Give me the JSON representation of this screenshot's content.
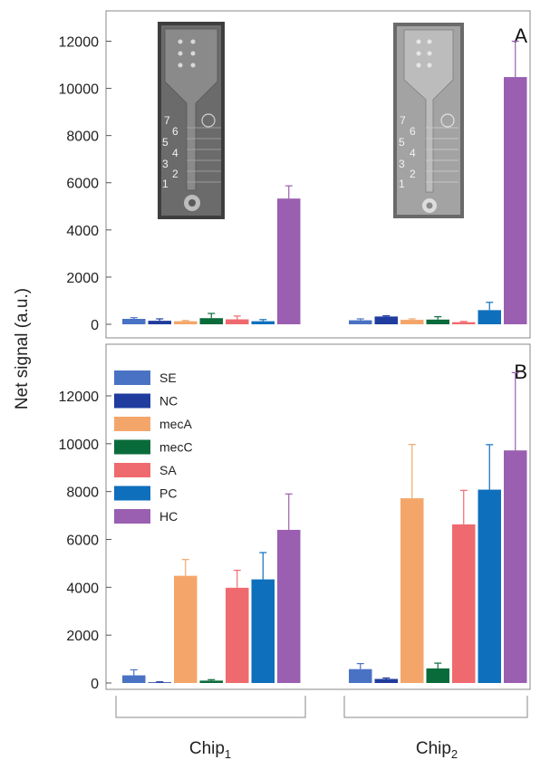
{
  "ylabel": "Net signal (a.u.)",
  "groups": [
    "Chip",
    "Chip"
  ],
  "group_subscripts": [
    "1",
    "2"
  ],
  "photo_numbers": [
    "7",
    "6",
    "5",
    "4",
    "3",
    "2",
    "1"
  ],
  "chart_data": [
    {
      "type": "bar",
      "panel": "A",
      "categories": [
        "Chip1",
        "Chip2"
      ],
      "series": [
        {
          "name": "SE",
          "color": "#4a72c4",
          "values": [
            230,
            170
          ],
          "errors": [
            50,
            60
          ]
        },
        {
          "name": "NC",
          "color": "#1f3c9e",
          "values": [
            150,
            330
          ],
          "errors": [
            80,
            30
          ]
        },
        {
          "name": "mecA",
          "color": "#f4a66a",
          "values": [
            130,
            190
          ],
          "errors": [
            30,
            40
          ]
        },
        {
          "name": "mecC",
          "color": "#0a6b3a",
          "values": [
            260,
            200
          ],
          "errors": [
            200,
            120
          ]
        },
        {
          "name": "SA",
          "color": "#ef6a6e",
          "values": [
            210,
            90
          ],
          "errors": [
            140,
            30
          ]
        },
        {
          "name": "PC",
          "color": "#0e6fbd",
          "values": [
            130,
            600
          ],
          "errors": [
            70,
            330
          ]
        },
        {
          "name": "HC",
          "color": "#9a5fb0",
          "values": [
            5330,
            10480
          ],
          "errors": [
            540,
            1520
          ]
        }
      ],
      "ylim": [
        0,
        13000
      ],
      "yticks": [
        "0",
        "2000",
        "4000",
        "6000",
        "8000",
        "10000",
        "12000"
      ]
    },
    {
      "type": "bar",
      "panel": "B",
      "categories": [
        "Chip1",
        "Chip2"
      ],
      "series": [
        {
          "name": "SE",
          "color": "#4a72c4",
          "values": [
            320,
            580
          ],
          "errors": [
            230,
            230
          ]
        },
        {
          "name": "NC",
          "color": "#1f3c9e",
          "values": [
            30,
            170
          ],
          "errors": [
            20,
            40
          ]
        },
        {
          "name": "mecA",
          "color": "#f4a66a",
          "values": [
            4480,
            7720
          ],
          "errors": [
            680,
            2250
          ]
        },
        {
          "name": "mecC",
          "color": "#0a6b3a",
          "values": [
            100,
            610
          ],
          "errors": [
            40,
            220
          ]
        },
        {
          "name": "SA",
          "color": "#ef6a6e",
          "values": [
            3980,
            6630
          ],
          "errors": [
            730,
            1420
          ]
        },
        {
          "name": "PC",
          "color": "#0e6fbd",
          "values": [
            4330,
            8080
          ],
          "errors": [
            1120,
            1880
          ]
        },
        {
          "name": "HC",
          "color": "#9a5fb0",
          "values": [
            6400,
            9720
          ],
          "errors": [
            1500,
            3250
          ]
        }
      ],
      "ylim": [
        0,
        13000
      ],
      "yticks": [
        "0",
        "2000",
        "4000",
        "6000",
        "8000",
        "10000",
        "12000"
      ]
    }
  ]
}
